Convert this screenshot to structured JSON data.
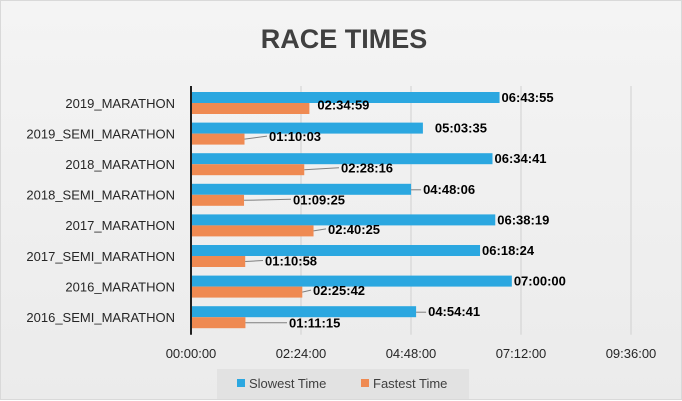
{
  "chart_data": {
    "type": "bar",
    "orientation": "horizontal",
    "title": "RACE TIMES",
    "categories": [
      "2019_MARATHON",
      "2019_SEMI_MARATHON",
      "2018_MARATHON",
      "2018_SEMI_MARATHON",
      "2017_MARATHON",
      "2017_SEMI_MARATHON",
      "2016_MARATHON",
      "2016_SEMI_MARATHON"
    ],
    "series": [
      {
        "name": "Slowest Time",
        "color": "#2ba7e0",
        "values": [
          "06:43:55",
          "05:03:35",
          "06:34:41",
          "04:48:06",
          "06:38:19",
          "06:18:24",
          "07:00:00",
          "04:54:41"
        ]
      },
      {
        "name": "Fastest Time",
        "color": "#ef8a52",
        "values": [
          "02:34:59",
          "01:10:03",
          "02:28:16",
          "01:09:25",
          "02:40:25",
          "01:10:58",
          "02:25:42",
          "01:11:15"
        ]
      }
    ],
    "xlim": [
      "00:00:00",
      "09:36:00"
    ],
    "x_ticks": [
      "00:00:00",
      "02:24:00",
      "04:48:00",
      "07:12:00",
      "09:36:00"
    ],
    "xlabel": "",
    "ylabel": "",
    "grid": "vertical",
    "legend_position": "bottom"
  }
}
